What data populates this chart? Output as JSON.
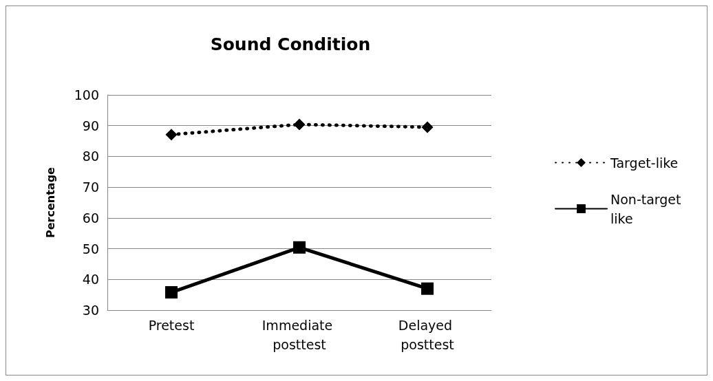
{
  "chart_data": {
    "type": "line",
    "title": "Sound Condition",
    "ylabel": "Percentage",
    "categories": [
      "Pretest",
      "Immediate posttest",
      "Delayed posttest"
    ],
    "series": [
      {
        "name": "Target-like",
        "color": "#000000",
        "values": [
          87.1,
          90.4,
          89.5
        ],
        "marker": "diamond",
        "line_style": "dotted"
      },
      {
        "name": "Non-target like",
        "color": "#000000",
        "values": [
          35.8,
          50.4,
          37.0
        ],
        "marker": "square",
        "line_style": "solid"
      }
    ],
    "ylim": [
      30,
      100
    ],
    "yticks": [
      30,
      40,
      50,
      60,
      70,
      80,
      90,
      100
    ],
    "grid": "y",
    "legend": "right"
  }
}
